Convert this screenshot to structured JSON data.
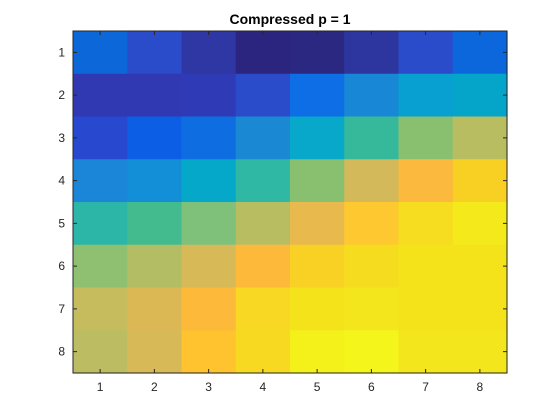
{
  "chart_data": {
    "type": "heatmap",
    "title": "Compressed p = 1",
    "xlabel": "",
    "ylabel": "",
    "x_categories": [
      "1",
      "2",
      "3",
      "4",
      "5",
      "6",
      "7",
      "8"
    ],
    "y_categories": [
      "1",
      "2",
      "3",
      "4",
      "5",
      "6",
      "7",
      "8"
    ],
    "y_direction": "top-to-bottom",
    "colormap": "parula",
    "grid": false,
    "cell_colors": [
      [
        "#0c68d9",
        "#2a4ccb",
        "#2e37a3",
        "#2b2580",
        "#2b2882",
        "#2d369e",
        "#2a4ccb",
        "#0c67dd"
      ],
      [
        "#3039b2",
        "#3039b2",
        "#2f3bb6",
        "#2a4ccb",
        "#0e6ee5",
        "#1887d6",
        "#07a0d1",
        "#05a5c9"
      ],
      [
        "#2948d0",
        "#0c5ee4",
        "#0e6ee1",
        "#1b88d4",
        "#07a8c9",
        "#36b89b",
        "#88c070",
        "#b9bd62"
      ],
      [
        "#1b86d8",
        "#138fd7",
        "#05a8c9",
        "#2fb8a4",
        "#88c070",
        "#d3b959",
        "#fbb93d",
        "#f8d024"
      ],
      [
        "#2bb6a7",
        "#43bb8f",
        "#7fc17a",
        "#b9bd62",
        "#e8b94c",
        "#fec930",
        "#f7dd1f",
        "#f4e91b"
      ],
      [
        "#8fc071",
        "#b3bd64",
        "#d7b958",
        "#fdb93a",
        "#f8d124",
        "#f5dc1f",
        "#f4e21b",
        "#f4e21b"
      ],
      [
        "#c6bc5d",
        "#dcb855",
        "#fdb93a",
        "#f8d823",
        "#f4e21b",
        "#f4e61c",
        "#f4e21b",
        "#f4e21b"
      ],
      [
        "#bcbd62",
        "#d7b958",
        "#fec32f",
        "#f7d922",
        "#f3f01a",
        "#f4f51a",
        "#f4e61c",
        "#f4e61c"
      ]
    ]
  }
}
